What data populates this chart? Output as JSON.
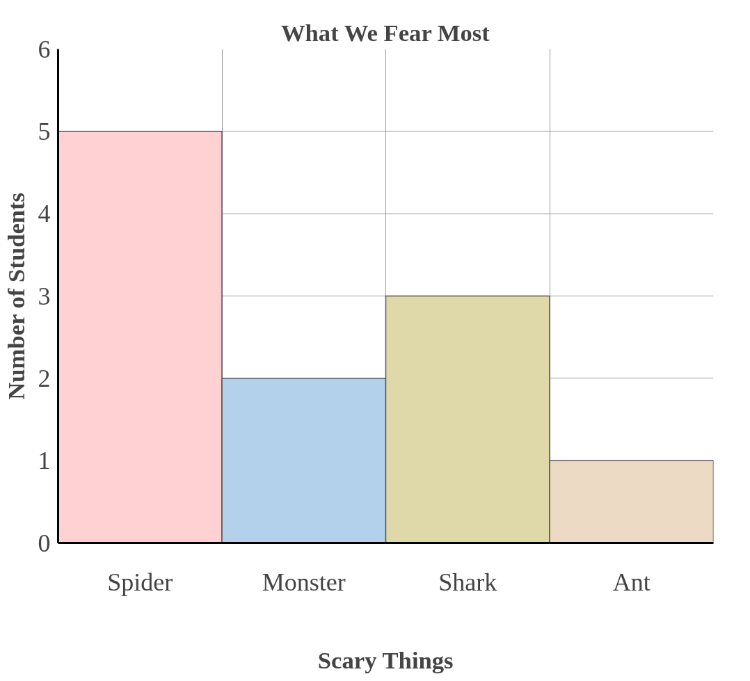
{
  "chart_data": {
    "type": "bar",
    "title": "What We Fear Most",
    "xlabel": "Scary Things",
    "ylabel": "Number of Students",
    "categories": [
      "Spider",
      "Monster",
      "Shark",
      "Ant"
    ],
    "values": [
      5,
      2,
      3,
      1
    ],
    "colors": [
      "#ffd1d3",
      "#b3d1ea",
      "#dfd8a8",
      "#ecdac5"
    ],
    "ylim": [
      0,
      6
    ],
    "yticks": [
      0,
      1,
      2,
      3,
      4,
      5,
      6
    ],
    "grid": true
  }
}
